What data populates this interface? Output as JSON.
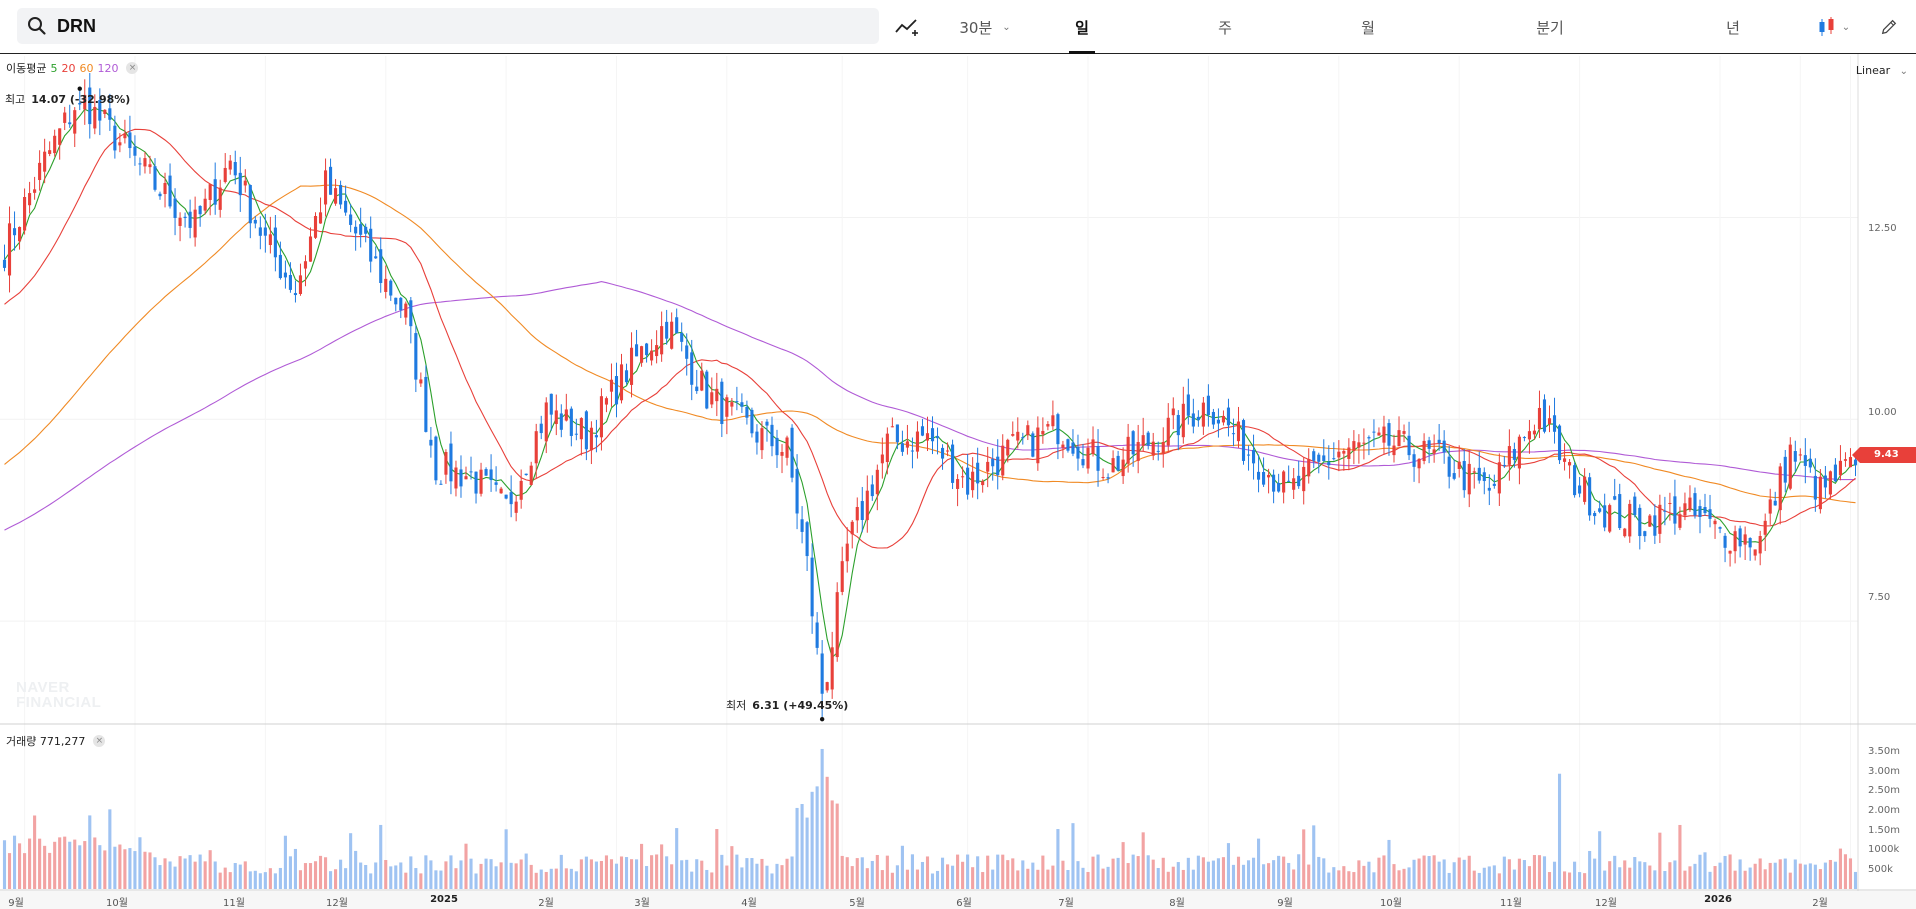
{
  "toolbar": {
    "search_value": "DRN",
    "interval": "30분",
    "tabs": [
      "일",
      "주",
      "월",
      "분기",
      "년"
    ],
    "active_tab": "일"
  },
  "colors": {
    "up": "#e8403a",
    "down": "#1f7ae0",
    "ma5": "#2ca02c",
    "ma20": "#e8403a",
    "ma60": "#f08a24",
    "ma120": "#b05bd6",
    "vol_up": "#f2a3a3",
    "vol_down": "#9fc3f2"
  },
  "legend": {
    "ma_title": "이동평균",
    "ma_periods": [
      "5",
      "20",
      "60",
      "120"
    ],
    "volume_label": "거래량 771,277",
    "close_glyph": "×"
  },
  "scale_mode": "Linear",
  "price_axis": [
    "12.50",
    "10.00",
    "7.50"
  ],
  "volume_axis": [
    "3.50m",
    "3.00m",
    "2.50m",
    "2.00m",
    "1.50m",
    "1000k",
    "500k"
  ],
  "last_price": "9.43",
  "annotations": {
    "high_label": "최고",
    "high_value": "14.07 (-32.98%)",
    "low_label": "최저",
    "low_value": "6.31 (+49.45%)"
  },
  "watermark": [
    "NAVER",
    "FINANCIAL"
  ],
  "x_labels": [
    "9월",
    "10월",
    "11월",
    "12월",
    "2025",
    "2월",
    "3월",
    "4월",
    "5월",
    "6월",
    "7월",
    "8월",
    "9월",
    "10월",
    "11월",
    "12월",
    "2026",
    "2월"
  ],
  "icons": {
    "search": "search-icon",
    "indicator": "add-indicator-icon",
    "chart_type": "candlestick-icon",
    "draw": "pencil-icon"
  },
  "chart_data": {
    "type": "candlestick",
    "series_price_anchors": [
      [
        0,
        12.1
      ],
      [
        8,
        13.2
      ],
      [
        15,
        14.0
      ],
      [
        22,
        13.5
      ],
      [
        30,
        12.9
      ],
      [
        38,
        12.4
      ],
      [
        45,
        13.2
      ],
      [
        52,
        12.2
      ],
      [
        58,
        11.6
      ],
      [
        64,
        12.9
      ],
      [
        72,
        12.1
      ],
      [
        80,
        11.3
      ],
      [
        86,
        9.4
      ],
      [
        93,
        9.3
      ],
      [
        100,
        8.9
      ],
      [
        108,
        10.1
      ],
      [
        116,
        9.8
      ],
      [
        124,
        10.6
      ],
      [
        132,
        11.2
      ],
      [
        140,
        10.3
      ],
      [
        148,
        9.9
      ],
      [
        156,
        9.6
      ],
      [
        160,
        8.2
      ],
      [
        163,
        6.5
      ],
      [
        168,
        8.4
      ],
      [
        176,
        9.7
      ],
      [
        184,
        9.8
      ],
      [
        192,
        9.2
      ],
      [
        200,
        9.6
      ],
      [
        210,
        9.9
      ],
      [
        220,
        9.4
      ],
      [
        230,
        9.8
      ],
      [
        240,
        10.2
      ],
      [
        248,
        9.6
      ],
      [
        256,
        9.1
      ],
      [
        266,
        9.6
      ],
      [
        276,
        9.7
      ],
      [
        286,
        9.5
      ],
      [
        296,
        9.1
      ],
      [
        306,
        10.1
      ],
      [
        312,
        9.3
      ],
      [
        318,
        8.9
      ],
      [
        326,
        8.7
      ],
      [
        334,
        8.9
      ],
      [
        342,
        8.6
      ],
      [
        350,
        8.5
      ],
      [
        356,
        9.6
      ],
      [
        362,
        9.1
      ],
      [
        368,
        9.43
      ]
    ],
    "high": 14.07,
    "low": 6.31,
    "moving_averages": [
      "5",
      "20",
      "60",
      "120"
    ],
    "ylim": [
      6.25,
      14.5
    ],
    "volume_ylim": [
      0,
      3800000
    ]
  }
}
